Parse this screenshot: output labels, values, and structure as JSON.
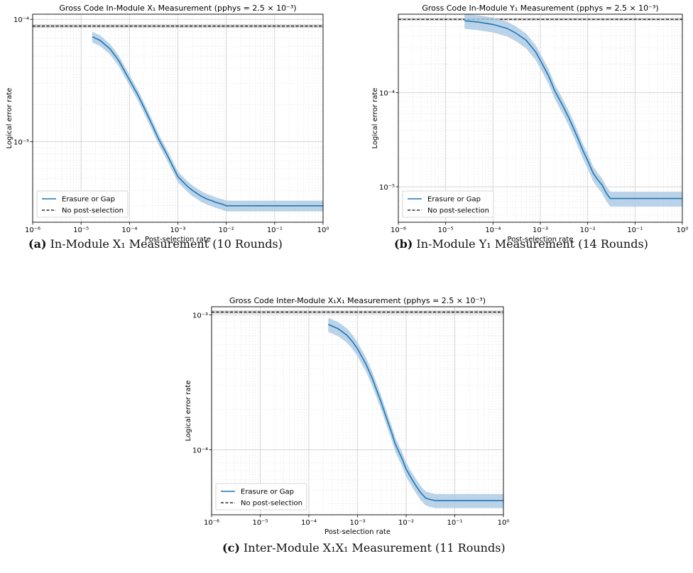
{
  "captions": {
    "a": {
      "tag": "(a)",
      "text": "In-Module X₁ Measurement (10 Rounds)"
    },
    "b": {
      "tag": "(b)",
      "text": "In-Module Y₁ Measurement (14 Rounds)"
    },
    "c": {
      "tag": "(c)",
      "text": "Inter-Module X₁X₁ Measurement (11 Rounds)"
    }
  },
  "colors": {
    "curve": "#1f77b4",
    "band": "#a9c8e2",
    "baseline": "#000000",
    "baseline_band": "#b0b0b0"
  },
  "chart_data": [
    {
      "type": "line",
      "title": "Gross Code In-Module X₁ Measurement (pphys = 2.5 × 10⁻³)",
      "xlabel": "Post-selection rate",
      "ylabel": "Logical error rate",
      "xscale": "log",
      "yscale": "log",
      "xlim": [
        1e-06,
        1
      ],
      "ylim": [
        2.2e-06,
        0.00011
      ],
      "xticks": [
        "10⁻⁶",
        "10⁻⁵",
        "10⁻⁴",
        "10⁻³",
        "10⁻²",
        "10⁻¹",
        "10⁰"
      ],
      "yticks": [
        {
          "value": 1e-05,
          "label": "10⁻⁵"
        },
        {
          "value": 0.0001,
          "label": "10⁻⁴"
        }
      ],
      "grid": true,
      "legend": "lower-left",
      "series": [
        {
          "name": "Erasure or Gap",
          "x": [
            1.7e-05,
            2.5e-05,
            4e-05,
            6e-05,
            0.0001,
            0.00015,
            0.0002,
            0.0003,
            0.0004,
            0.0006,
            0.0008,
            0.001,
            0.0015,
            0.002,
            0.003,
            0.004,
            0.005,
            0.006,
            0.008,
            0.01,
            0.02,
            0.05,
            0.1,
            0.3,
            1
          ],
          "y": [
            7.2e-05,
            6.7e-05,
            5.7e-05,
            4.6e-05,
            3.2e-05,
            2.4e-05,
            1.9e-05,
            1.35e-05,
            1.05e-05,
            7.8e-06,
            6.2e-06,
            5.2e-06,
            4.4e-06,
            4e-06,
            3.6e-06,
            3.4e-06,
            3.3e-06,
            3.2e-06,
            3.1e-06,
            3e-06,
            3e-06,
            3e-06,
            3e-06,
            3e-06,
            3e-06
          ],
          "band_rel": 0.1
        },
        {
          "name": "No post-selection",
          "y": 8.8e-05,
          "band": [
            8.5e-05,
            9.1e-05
          ]
        }
      ]
    },
    {
      "type": "line",
      "title": "Gross Code In-Module Y₁ Measurement (pphys = 2.5 × 10⁻³)",
      "xlabel": "Post-selection rate",
      "ylabel": "Logical error rate",
      "xscale": "log",
      "yscale": "log",
      "xlim": [
        1e-06,
        1
      ],
      "ylim": [
        4.2e-06,
        0.00068
      ],
      "xticks": [
        "10⁻⁶",
        "10⁻⁵",
        "10⁻⁴",
        "10⁻³",
        "10⁻²",
        "10⁻¹",
        "10⁰"
      ],
      "yticks": [
        {
          "value": 1e-05,
          "label": "10⁻⁵"
        },
        {
          "value": 0.0001,
          "label": "10⁻⁴"
        }
      ],
      "grid": true,
      "legend": "lower-left",
      "series": [
        {
          "name": "Erasure or Gap",
          "x": [
            2.5e-05,
            5e-05,
            0.0001,
            0.0002,
            0.0003,
            0.0005,
            0.0008,
            0.001,
            0.0015,
            0.002,
            0.003,
            0.004,
            0.005,
            0.006,
            0.008,
            0.01,
            0.013,
            0.016,
            0.02,
            0.025,
            0.03,
            0.05,
            0.1,
            0.3,
            1
          ],
          "y": [
            0.00058,
            0.00056,
            0.00053,
            0.00048,
            0.00043,
            0.00036,
            0.00027,
            0.00022,
            0.00015,
            0.000105,
            7.2e-05,
            5.4e-05,
            4.2e-05,
            3.4e-05,
            2.4e-05,
            1.9e-05,
            1.4e-05,
            1.2e-05,
            1.05e-05,
            8.5e-06,
            7.5e-06,
            7.5e-06,
            7.5e-06,
            7.5e-06,
            7.5e-06
          ],
          "band_rel": 0.18
        },
        {
          "name": "No post-selection",
          "y": 0.0006,
          "band": [
            0.00058,
            0.00062
          ]
        }
      ]
    },
    {
      "type": "line",
      "title": "Gross Code Inter-Module X₁X₁ Measurement (pphys = 2.5 × 10⁻³)",
      "xlabel": "Post-selection rate",
      "ylabel": "Logical error rate",
      "xscale": "log",
      "yscale": "log",
      "xlim": [
        1e-06,
        1
      ],
      "ylim": [
        3.3e-05,
        0.00115
      ],
      "xticks": [
        "10⁻⁶",
        "10⁻⁵",
        "10⁻⁴",
        "10⁻³",
        "10⁻²",
        "10⁻¹",
        "10⁰"
      ],
      "yticks": [
        {
          "value": 0.0001,
          "label": "10⁻⁴"
        },
        {
          "value": 0.001,
          "label": "10⁻³"
        }
      ],
      "grid": true,
      "legend": "lower-left",
      "series": [
        {
          "name": "Erasure or Gap",
          "x": [
            0.00025,
            0.0004,
            0.0006,
            0.0008,
            0.001,
            0.0015,
            0.002,
            0.003,
            0.004,
            0.005,
            0.006,
            0.008,
            0.01,
            0.013,
            0.016,
            0.02,
            0.025,
            0.03,
            0.04,
            0.05,
            0.1,
            0.3,
            1
          ],
          "y": [
            0.00085,
            0.00079,
            0.00071,
            0.00063,
            0.00056,
            0.00043,
            0.00034,
            0.00023,
            0.00017,
            0.000135,
            0.00011,
            8.8e-05,
            7.2e-05,
            6.1e-05,
            5.4e-05,
            4.8e-05,
            4.4e-05,
            4.3e-05,
            4.2e-05,
            4.2e-05,
            4.2e-05,
            4.2e-05,
            4.2e-05
          ],
          "band_rel": 0.12
        },
        {
          "name": "No post-selection",
          "y": 0.00105,
          "band": [
            0.00102,
            0.00108
          ]
        }
      ]
    }
  ]
}
